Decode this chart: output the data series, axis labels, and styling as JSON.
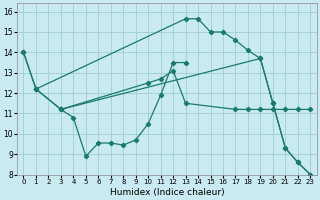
{
  "xlabel": "Humidex (Indice chaleur)",
  "bg_color": "#c8eaf0",
  "line_color": "#1a7a6e",
  "grid_color": "#9ecfcc",
  "xlim": [
    -0.5,
    23.5
  ],
  "ylim": [
    8,
    16.4
  ],
  "xtick_labels": [
    "0",
    "1",
    "2",
    "3",
    "4",
    "5",
    "6",
    "7",
    "8",
    "9",
    "10",
    "11",
    "12",
    "13",
    "14",
    "15",
    "16",
    "17",
    "18",
    "19",
    "20",
    "21",
    "22",
    "23"
  ],
  "ytick_labels": [
    "8",
    "9",
    "10",
    "11",
    "12",
    "13",
    "14",
    "15",
    "16"
  ],
  "xticks": [
    0,
    1,
    2,
    3,
    4,
    5,
    6,
    7,
    8,
    9,
    10,
    11,
    12,
    13,
    14,
    15,
    16,
    17,
    18,
    19,
    20,
    21,
    22,
    23
  ],
  "yticks": [
    8,
    9,
    10,
    11,
    12,
    13,
    14,
    15,
    16
  ],
  "lines": [
    {
      "x": [
        0,
        1,
        13,
        14,
        15,
        16,
        17,
        18,
        19,
        20,
        21,
        22,
        23
      ],
      "y": [
        14,
        12.2,
        15.65,
        15.65,
        15.0,
        15.0,
        14.6,
        14.1,
        13.7,
        11.5,
        9.3,
        8.6,
        8.0
      ]
    },
    {
      "x": [
        3,
        4,
        5,
        6,
        7,
        8,
        9,
        10,
        11,
        12,
        13
      ],
      "y": [
        11.2,
        10.8,
        8.9,
        9.55,
        9.55,
        9.45,
        9.7,
        10.5,
        11.9,
        13.5,
        13.5
      ]
    },
    {
      "x": [
        1,
        3,
        10,
        11,
        12,
        13,
        17,
        18,
        19,
        20,
        21,
        22,
        23
      ],
      "y": [
        12.2,
        11.2,
        12.5,
        12.7,
        13.1,
        11.5,
        11.2,
        11.2,
        11.2,
        11.2,
        11.2,
        11.2,
        11.2
      ]
    },
    {
      "x": [
        0,
        1,
        3,
        19,
        20,
        21,
        22,
        23
      ],
      "y": [
        14,
        12.2,
        11.2,
        13.7,
        11.5,
        9.3,
        8.6,
        8.0
      ]
    }
  ]
}
